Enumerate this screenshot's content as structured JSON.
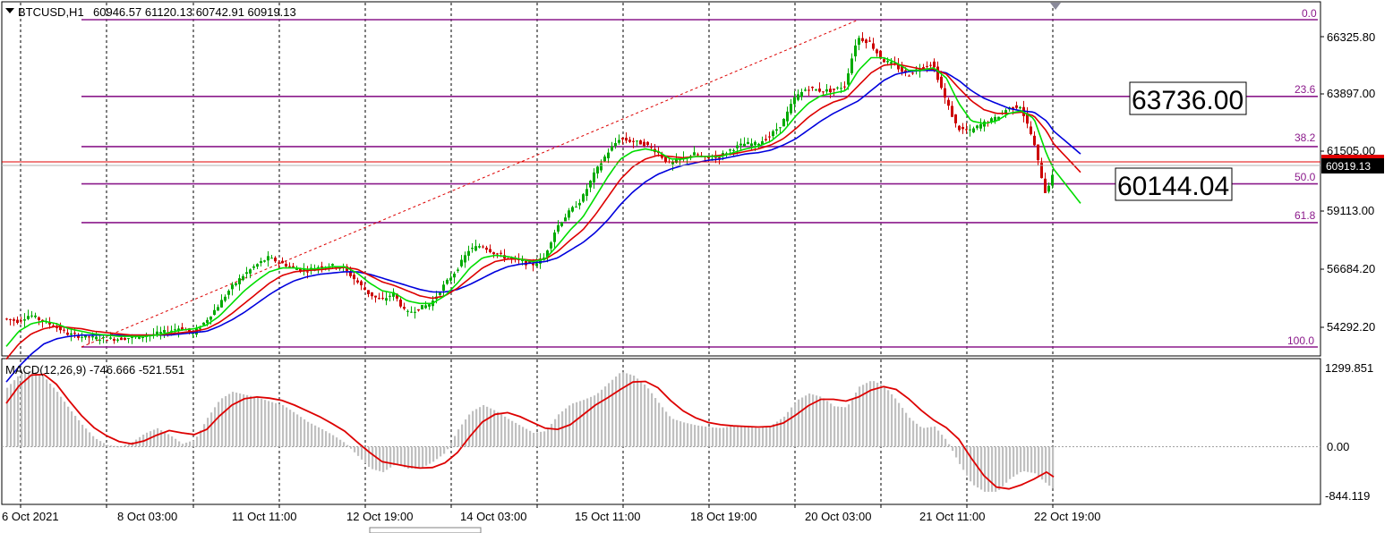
{
  "header": {
    "symbol": "BTCUSD,H1",
    "ohlc": "60946.57 61120.13 60742.91 60919.13"
  },
  "macd_header": {
    "label": "MACD(12,26,9) -746.666 -521.551"
  },
  "price_axis": {
    "ticks": [
      "66325.80",
      "63897.00",
      "61505.00",
      "59113.00",
      "56684.20",
      "54292.20"
    ],
    "current_price": "60919.13",
    "current_price_color": "#000000",
    "bid_line_color": "#e00000"
  },
  "macd_axis": {
    "ticks": [
      "1299.851",
      "0.00",
      "-844.119"
    ]
  },
  "time_axis": {
    "labels": [
      "6 Oct 2021",
      "8 Oct 03:00",
      "11 Oct 11:00",
      "12 Oct 19:00",
      "14 Oct 03:00",
      "15 Oct 11:00",
      "18 Oct 19:00",
      "20 Oct 03:00",
      "21 Oct 11:00",
      "22 Oct 19:00"
    ]
  },
  "fibonacci": {
    "color": "#8b1a8b",
    "levels": [
      {
        "label": "0.0",
        "price": 67100
      },
      {
        "label": "23.6",
        "price": 64070
      },
      {
        "label": "38.2",
        "price": 62090
      },
      {
        "label": "50.0",
        "price": 60620
      },
      {
        "label": "61.8",
        "price": 59090
      },
      {
        "label": "100.0",
        "price": 54180
      }
    ]
  },
  "annotations": {
    "upper_box": "63736.00",
    "lower_box": "60144.04"
  },
  "colors": {
    "bull": "#00aa00",
    "bear": "#cc0000",
    "ma_fast": "#00dd00",
    "ma_mid": "#dd0000",
    "ma_slow": "#0000dd",
    "macd_hist": "#c0c0c0",
    "macd_signal": "#dd0000",
    "grid": "#000000",
    "trend_line": "#dd0000"
  },
  "chart_data": {
    "type": "candlestick",
    "ylim": [
      53300,
      67600
    ],
    "macd_ylim": [
      -1000,
      1400
    ],
    "anchor_x": [
      0,
      14,
      28,
      42,
      56,
      70,
      84,
      98,
      112,
      126,
      140,
      154,
      168,
      182,
      196,
      210,
      224,
      238,
      252,
      266,
      280,
      294,
      308,
      322,
      336,
      350,
      364,
      378,
      392,
      406,
      420,
      434,
      448,
      462,
      476,
      490,
      504,
      518,
      532,
      546,
      560,
      574,
      588,
      602,
      616,
      630,
      644,
      658,
      672,
      686,
      700,
      714,
      728,
      742,
      756,
      770,
      784,
      798,
      812,
      826,
      840,
      854,
      868,
      882,
      896,
      910,
      924,
      938,
      952,
      966,
      980,
      994,
      1008,
      1022,
      1036,
      1050,
      1064,
      1078,
      1092,
      1106,
      1120,
      1134,
      1148,
      1162,
      1170
    ],
    "anchor_price": [
      55300,
      55200,
      55450,
      55200,
      55000,
      54700,
      54600,
      54550,
      54500,
      54500,
      54550,
      54600,
      54700,
      54800,
      54950,
      54700,
      55200,
      55800,
      56500,
      57000,
      57400,
      57700,
      57500,
      57300,
      57200,
      57350,
      57400,
      57300,
      56800,
      56300,
      56000,
      56300,
      55500,
      55700,
      55900,
      56600,
      57200,
      58000,
      58200,
      57900,
      57700,
      57600,
      57400,
      57700,
      58900,
      59500,
      60000,
      61000,
      61800,
      62400,
      62300,
      62200,
      61900,
      61400,
      61600,
      61800,
      61600,
      61700,
      62000,
      62200,
      62200,
      62500,
      63000,
      64000,
      64400,
      64300,
      64300,
      64500,
      66400,
      66200,
      65500,
      65300,
      64900,
      65200,
      65400,
      64000,
      62800,
      62700,
      63000,
      63200,
      63600,
      63700,
      62400,
      60300,
      60900
    ],
    "ma_fast_price": [
      54200,
      54800,
      55100,
      55200,
      55100,
      54900,
      54800,
      54700,
      54650,
      54600,
      54600,
      54600,
      54650,
      54750,
      54850,
      54900,
      55050,
      55400,
      55900,
      56400,
      56800,
      57150,
      57300,
      57300,
      57250,
      57280,
      57350,
      57350,
      57100,
      56700,
      56400,
      56300,
      56000,
      55900,
      55900,
      56200,
      56700,
      57300,
      57700,
      57800,
      57750,
      57650,
      57550,
      57650,
      58200,
      58800,
      59300,
      60100,
      60900,
      61600,
      61900,
      62000,
      61900,
      61600,
      61600,
      61700,
      61700,
      61700,
      61850,
      62000,
      62100,
      62300,
      62700,
      63300,
      63800,
      64100,
      64200,
      64300,
      65100,
      65600,
      65600,
      65400,
      65100,
      65100,
      65200,
      64800,
      63800,
      63100,
      63000,
      63100,
      63400,
      63500,
      63200,
      61800,
      61200
    ],
    "ma_mid_price": [
      53700,
      54300,
      54700,
      54900,
      55000,
      54950,
      54900,
      54800,
      54750,
      54700,
      54650,
      54650,
      54650,
      54700,
      54750,
      54800,
      54900,
      55150,
      55500,
      55900,
      56300,
      56700,
      57000,
      57150,
      57200,
      57230,
      57280,
      57320,
      57250,
      57000,
      56750,
      56600,
      56400,
      56200,
      56100,
      56200,
      56500,
      56900,
      57300,
      57550,
      57650,
      57650,
      57600,
      57650,
      57950,
      58400,
      58800,
      59400,
      60100,
      60800,
      61300,
      61600,
      61750,
      61700,
      61650,
      61700,
      61700,
      61750,
      61800,
      61900,
      62000,
      62150,
      62400,
      62800,
      63250,
      63600,
      63850,
      64000,
      64500,
      65000,
      65300,
      65350,
      65250,
      65150,
      65150,
      64950,
      64400,
      63900,
      63550,
      63400,
      63400,
      63450,
      63300,
      62700,
      62200
    ],
    "ma_slow_price": [
      52800,
      53400,
      53900,
      54300,
      54500,
      54600,
      54650,
      54650,
      54650,
      54650,
      54650,
      54650,
      54650,
      54650,
      54700,
      54750,
      54800,
      55000,
      55250,
      55550,
      55900,
      56250,
      56550,
      56800,
      56950,
      57050,
      57100,
      57150,
      57150,
      57050,
      56900,
      56750,
      56600,
      56450,
      56350,
      56350,
      56450,
      56650,
      56900,
      57150,
      57350,
      57450,
      57500,
      57550,
      57700,
      58000,
      58300,
      58700,
      59200,
      59800,
      60300,
      60700,
      61000,
      61200,
      61350,
      61450,
      61550,
      61600,
      61700,
      61800,
      61850,
      61950,
      62150,
      62400,
      62750,
      63100,
      63400,
      63650,
      63900,
      64300,
      64700,
      64950,
      65050,
      65100,
      65100,
      65000,
      64700,
      64300,
      64000,
      63800,
      63600,
      63500,
      63450,
      63100,
      62700
    ],
    "macd_hist_values": [
      1020,
      1250,
      1330,
      1200,
      950,
      650,
      380,
      150,
      30,
      0,
      80,
      230,
      320,
      200,
      50,
      120,
      500,
      820,
      950,
      900,
      850,
      780,
      720,
      580,
      430,
      320,
      200,
      60,
      -160,
      -380,
      -440,
      -300,
      -380,
      -380,
      -260,
      -100,
      300,
      600,
      720,
      620,
      480,
      360,
      240,
      270,
      560,
      740,
      810,
      900,
      1100,
      1300,
      1230,
      1050,
      760,
      490,
      420,
      370,
      340,
      320,
      370,
      350,
      320,
      370,
      520,
      800,
      920,
      860,
      700,
      680,
      1040,
      1150,
      1050,
      800,
      500,
      320,
      350,
      100,
      -300,
      -650,
      -780,
      -780,
      -560,
      -420,
      -460,
      -650,
      -746
    ],
    "macd_signal_values": [
      750,
      1050,
      1240,
      1250,
      1080,
      800,
      540,
      330,
      190,
      90,
      50,
      100,
      200,
      280,
      240,
      210,
      300,
      530,
      720,
      830,
      860,
      840,
      800,
      720,
      620,
      520,
      400,
      270,
      80,
      -100,
      -260,
      -300,
      -340,
      -370,
      -360,
      -280,
      -100,
      180,
      430,
      560,
      590,
      520,
      420,
      320,
      300,
      380,
      550,
      720,
      850,
      990,
      1120,
      1130,
      1020,
      800,
      620,
      500,
      420,
      380,
      360,
      350,
      340,
      350,
      410,
      550,
      710,
      820,
      820,
      790,
      860,
      980,
      1040,
      990,
      830,
      630,
      460,
      330,
      130,
      -200,
      -500,
      -700,
      -730,
      -660,
      -560,
      -440,
      -521
    ]
  }
}
